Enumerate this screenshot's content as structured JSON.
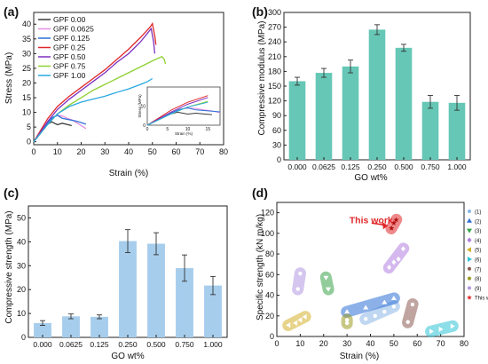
{
  "panels": [
    {
      "label": "(a)",
      "type": "line",
      "xlabel": "Strain (%)",
      "ylabel": "Stress (MPa)",
      "xticks": [
        0,
        10,
        20,
        30,
        40,
        50,
        60,
        70,
        80
      ],
      "yticks": [
        0,
        5,
        10,
        15,
        20,
        25,
        30,
        35,
        40
      ],
      "xlim": [
        0,
        80
      ],
      "ylim": [
        -1,
        44
      ],
      "legend": [
        "GPF 0.00",
        "GPF 0.0625",
        "GPF 0.125",
        "GPF 0.25",
        "GPF 0.50",
        "GPF 0.75",
        "GPF 1.00"
      ],
      "inset": {
        "xlabel": "Strain (%)",
        "ylabel": "Stress (MPa)",
        "xticks": [
          0,
          5,
          10,
          15
        ],
        "yticks": [
          0,
          10
        ]
      }
    },
    {
      "label": "(b)",
      "type": "bar",
      "xlabel": "GO wt%",
      "ylabel": "Compressive modulus (MPa)",
      "categories": [
        "0.000",
        "0.0625",
        "0.125",
        "0.250",
        "0.500",
        "0.750",
        "1.000"
      ],
      "values": [
        160,
        177,
        190,
        265,
        228,
        118,
        116
      ],
      "errors": [
        8,
        9,
        13,
        10,
        7,
        13,
        15
      ],
      "yticks": [
        0,
        30,
        60,
        90,
        120,
        150,
        180,
        210,
        240,
        270,
        300
      ],
      "ylim": [
        0,
        300
      ]
    },
    {
      "label": "(c)",
      "type": "bar",
      "xlabel": "GO wt%",
      "ylabel": "Compressive strength (MPa)",
      "categories": [
        "0.000",
        "0.0625",
        "0.125",
        "0.250",
        "0.500",
        "0.750",
        "1.000"
      ],
      "values": [
        6.0,
        8.8,
        8.6,
        40.3,
        39.2,
        29.0,
        21.7
      ],
      "errors": [
        1.0,
        1.0,
        0.8,
        4.8,
        4.6,
        5.5,
        3.8
      ],
      "yticks": [
        0,
        10,
        20,
        30,
        40,
        50
      ],
      "ylim": [
        0,
        55
      ]
    },
    {
      "label": "(d)",
      "type": "scatter",
      "xlabel": "Strain (%)",
      "ylabel": "Specific strength (kN m/kg)",
      "xticks": [
        0,
        10,
        20,
        30,
        40,
        50,
        60,
        70,
        80
      ],
      "yticks": [
        0,
        20,
        40,
        60,
        80,
        100,
        120
      ],
      "xlim": [
        0,
        80
      ],
      "ylim": [
        0,
        130
      ],
      "annotation": "This work",
      "legend": [
        "(1)",
        "(2)",
        "(3)",
        "(4)",
        "(5)",
        "(6)",
        "(7)",
        "(8)",
        "(9)",
        "This work"
      ]
    }
  ],
  "chart_data": [
    {
      "type": "line",
      "series": [
        {
          "name": "GPF 0.00",
          "x": [
            0,
            2,
            4,
            6,
            7.5,
            9,
            10,
            12,
            14,
            16
          ],
          "y": [
            0,
            2.5,
            4.5,
            6,
            6.8,
            6.2,
            5.8,
            6.3,
            5.9,
            5.5
          ]
        },
        {
          "name": "GPF 0.0625",
          "x": [
            0,
            3,
            6,
            8,
            10,
            12,
            14,
            16,
            18,
            20,
            22
          ],
          "y": [
            0,
            3.5,
            6.5,
            8.2,
            9,
            8.8,
            8,
            7.5,
            6.5,
            5.5,
            4.5
          ]
        },
        {
          "name": "GPF 0.125",
          "x": [
            0,
            3,
            6,
            8,
            10,
            12,
            15,
            18,
            20,
            22
          ],
          "y": [
            0,
            3,
            6.5,
            8.3,
            9,
            8,
            7.5,
            7,
            6.5,
            6
          ]
        },
        {
          "name": "GPF 0.25",
          "x": [
            0,
            3,
            6,
            10,
            15,
            20,
            25,
            30,
            35,
            40,
            45,
            49,
            50,
            51,
            51.5
          ],
          "y": [
            0,
            4,
            8,
            12,
            15.5,
            18.5,
            21.5,
            24.5,
            28,
            31.5,
            35.5,
            39,
            40.2,
            36,
            33
          ]
        },
        {
          "name": "GPF 0.50",
          "x": [
            0,
            3,
            6,
            10,
            15,
            20,
            25,
            30,
            35,
            40,
            45,
            48,
            49.5,
            50.5,
            51
          ],
          "y": [
            0,
            3.5,
            7,
            11,
            14.5,
            17.5,
            20.5,
            23.5,
            27,
            30,
            34,
            37,
            38.5,
            34,
            30
          ]
        },
        {
          "name": "GPF 0.75",
          "x": [
            0,
            3,
            6,
            10,
            15,
            20,
            25,
            30,
            35,
            40,
            45,
            50,
            54,
            55,
            55.5
          ],
          "y": [
            0,
            3,
            6,
            9.5,
            12.5,
            15,
            17.5,
            19.5,
            21.5,
            23.5,
            25.5,
            27.5,
            29,
            28,
            26.5
          ]
        },
        {
          "name": "GPF 1.00",
          "x": [
            0,
            3,
            6,
            10,
            15,
            20,
            25,
            30,
            35,
            40,
            45,
            48,
            50
          ],
          "y": [
            0,
            3,
            6,
            9.5,
            12,
            13.5,
            14.5,
            15.5,
            16.8,
            18,
            19.5,
            20.5,
            21.5
          ]
        }
      ]
    },
    {
      "type": "bar",
      "categories": [
        "0.000",
        "0.0625",
        "0.125",
        "0.250",
        "0.500",
        "0.750",
        "1.000"
      ],
      "values": [
        160,
        177,
        190,
        265,
        228,
        118,
        116
      ],
      "errors": [
        8,
        9,
        13,
        10,
        7,
        13,
        15
      ]
    },
    {
      "type": "bar",
      "categories": [
        "0.000",
        "0.0625",
        "0.125",
        "0.250",
        "0.500",
        "0.750",
        "1.000"
      ],
      "values": [
        6.0,
        8.8,
        8.6,
        40.3,
        39.2,
        29.0,
        21.7
      ],
      "errors": [
        1.0,
        1.0,
        0.8,
        4.8,
        4.6,
        5.5,
        3.8
      ]
    },
    {
      "type": "scatter",
      "series": [
        {
          "name": "(1)",
          "x": [
            38,
            42,
            46,
            50
          ],
          "y": [
            17,
            20,
            24,
            29
          ]
        },
        {
          "name": "(2)",
          "x": [
            30,
            38,
            46,
            50
          ],
          "y": [
            24,
            28,
            33,
            37
          ]
        },
        {
          "name": "(3)",
          "x": [
            21,
            22
          ],
          "y": [
            57,
            46
          ]
        },
        {
          "name": "(4)",
          "x": [
            48,
            50,
            52,
            54
          ],
          "y": [
            67,
            72,
            75,
            85
          ]
        },
        {
          "name": "(5)",
          "x": [
            5,
            8,
            10,
            12
          ],
          "y": [
            11,
            13,
            16,
            19
          ]
        },
        {
          "name": "(6)",
          "x": [
            66,
            70,
            75
          ],
          "y": [
            5,
            7,
            10
          ]
        },
        {
          "name": "(7)",
          "x": [
            56,
            58
          ],
          "y": [
            14,
            31
          ]
        },
        {
          "name": "(8)",
          "x": [
            30,
            30
          ],
          "y": [
            13,
            16
          ]
        },
        {
          "name": "(9)",
          "x": [
            9,
            10
          ],
          "y": [
            46,
            61
          ]
        },
        {
          "name": "This work",
          "x": [
            49,
            50,
            51
          ],
          "y": [
            105,
            110,
            113
          ]
        }
      ]
    }
  ],
  "colors": {
    "GPF 0.00": "#3a3a3a",
    "GPF 0.0625": "#e58fe0",
    "GPF 0.125": "#2e6fd6",
    "GPF 0.25": "#e0282a",
    "GPF 0.50": "#7b2fbf",
    "GPF 0.75": "#8ed12f",
    "GPF 1.00": "#29a8e0",
    "bar_b": "#66c7b6",
    "bar_c": "#a6cdec"
  }
}
